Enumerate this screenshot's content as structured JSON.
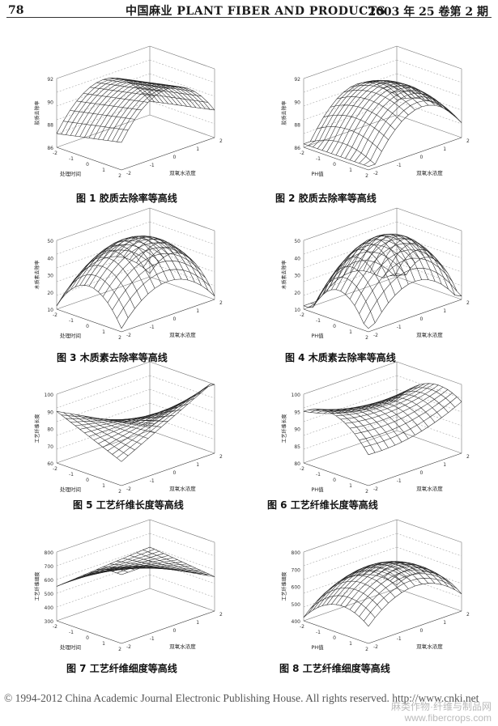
{
  "header": {
    "page_number": "78",
    "journal": "中国麻业   PLANT FIBER AND PRODUCTS",
    "issue": "2003 年 25 卷第 2 期"
  },
  "figures": [
    {
      "caption": "图 1    胶质去除率等高线",
      "xlabel": "处理时间",
      "ylabel": "双氧水浓度",
      "zlabel": "胶质去除率",
      "zticks": [
        "92",
        "90",
        "88",
        "86"
      ],
      "shape": "ridge"
    },
    {
      "caption": "图 2    胶质去除率等高线",
      "xlabel": "PH值",
      "ylabel": "双氧水浓度",
      "zlabel": "胶质去除率",
      "zticks": [
        "92",
        "90",
        "88",
        "86"
      ],
      "shape": "ridge2"
    },
    {
      "caption": "图 3    木质素去除率等高线",
      "xlabel": "处理时间",
      "ylabel": "双氧水浓度",
      "zlabel": "木质素去除率",
      "zticks": [
        "50",
        "40",
        "30",
        "20",
        "10"
      ],
      "shape": "dome"
    },
    {
      "caption": "图 4    木质素去除率等高线",
      "xlabel": "PH值",
      "ylabel": "双氧水浓度",
      "zlabel": "木质素去除率",
      "zticks": [
        "50",
        "40",
        "30",
        "20",
        "10"
      ],
      "shape": "peak"
    },
    {
      "caption": "图 5    工艺纤维长度等高线",
      "xlabel": "处理时间",
      "ylabel": "双氧水浓度",
      "zlabel": "工艺纤维长度",
      "zticks": [
        "100",
        "90",
        "80",
        "70",
        "60"
      ],
      "shape": "saddle"
    },
    {
      "caption": "图 6    工艺纤维长度等高线",
      "xlabel": "PH值",
      "ylabel": "双氧水浓度",
      "zlabel": "工艺纤维长度",
      "zticks": [
        "100",
        "95",
        "90",
        "85",
        "80"
      ],
      "shape": "saddle2"
    },
    {
      "caption": "图 7    工艺纤维细度等高线",
      "xlabel": "处理时间",
      "ylabel": "双氧水浓度",
      "zlabel": "工艺纤维细度",
      "zticks": [
        "800",
        "700",
        "600",
        "500",
        "400",
        "300"
      ],
      "shape": "tilt"
    },
    {
      "caption": "图 8    工艺纤维细度等高线",
      "xlabel": "PH值",
      "ylabel": "双氧水浓度",
      "zlabel": "工艺纤维细度",
      "zticks": [
        "800",
        "700",
        "600",
        "500",
        "400"
      ],
      "shape": "hump"
    }
  ],
  "axis_ticks": [
    "-2",
    "-1",
    "0",
    "1",
    "2"
  ],
  "footer": "© 1994-2012 China Academic Journal Electronic Publishing House. All rights reserved.    http://www.cnki.net",
  "watermark": {
    "line1": "麻类作物·纤维与制品网",
    "line2": "www.fibercrops.com"
  }
}
